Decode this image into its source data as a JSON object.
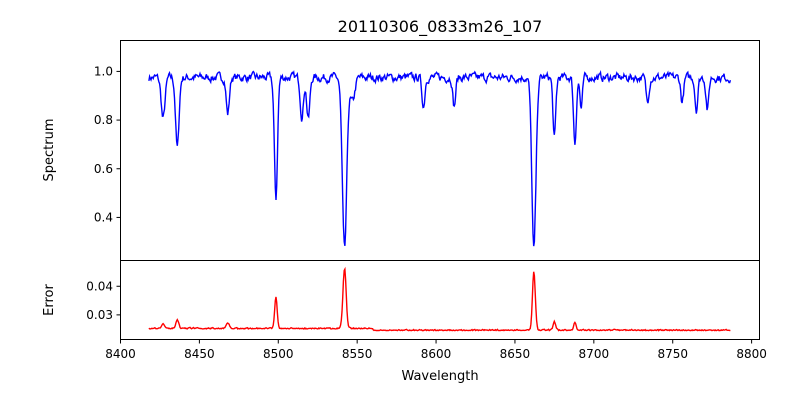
{
  "chart_data": {
    "type": "line",
    "title": "20110306_0833m26_107",
    "xlabel": "Wavelength",
    "xlim": [
      8400,
      8805
    ],
    "xticks": [
      "8400",
      "8450",
      "8500",
      "8550",
      "8600",
      "8650",
      "8700",
      "8750",
      "8800"
    ],
    "x_range_data": [
      8418,
      8787
    ],
    "panels": [
      {
        "name": "Spectrum",
        "ylabel": "Spectrum",
        "color": "#0000ff",
        "ylim": [
          0.223,
          1.127
        ],
        "yticks": [
          "0.4",
          "0.6",
          "0.8",
          "1.0"
        ],
        "continuum": 0.975,
        "noise": 0.028,
        "absorption_lines": [
          {
            "center": 8427,
            "depth": 0.17,
            "width": 1.2
          },
          {
            "center": 8436,
            "depth": 0.29,
            "width": 1.1
          },
          {
            "center": 8468,
            "depth": 0.15,
            "width": 1.0
          },
          {
            "center": 8498.5,
            "depth": 0.5,
            "width": 1.0
          },
          {
            "center": 8515,
            "depth": 0.16,
            "width": 1.0
          },
          {
            "center": 8519,
            "depth": 0.17,
            "width": 1.0
          },
          {
            "center": 8542,
            "depth": 0.71,
            "width": 1.4
          },
          {
            "center": 8547,
            "depth": 0.1,
            "width": 1.5
          },
          {
            "center": 8592,
            "depth": 0.12,
            "width": 0.9
          },
          {
            "center": 8611.5,
            "depth": 0.12,
            "width": 0.9
          },
          {
            "center": 8662,
            "depth": 0.71,
            "width": 1.3
          },
          {
            "center": 8675,
            "depth": 0.25,
            "width": 0.9
          },
          {
            "center": 8688,
            "depth": 0.27,
            "width": 0.9
          },
          {
            "center": 8692,
            "depth": 0.13,
            "width": 0.8
          },
          {
            "center": 8734,
            "depth": 0.1,
            "width": 0.9
          },
          {
            "center": 8756,
            "depth": 0.1,
            "width": 0.9
          },
          {
            "center": 8765,
            "depth": 0.13,
            "width": 0.9
          },
          {
            "center": 8772,
            "depth": 0.13,
            "width": 0.9
          }
        ]
      },
      {
        "name": "Error",
        "ylabel": "Error",
        "color": "#ff0000",
        "ylim": [
          0.0214,
          0.049
        ],
        "yticks": [
          "0.03",
          "0.04"
        ],
        "baseline": 0.0255,
        "noise": 0.0008,
        "emission_peaks": [
          {
            "center": 8427,
            "height": 0.0015,
            "width": 1.0
          },
          {
            "center": 8436,
            "height": 0.003,
            "width": 0.9
          },
          {
            "center": 8468,
            "height": 0.002,
            "width": 1.0
          },
          {
            "center": 8498.5,
            "height": 0.011,
            "width": 0.8
          },
          {
            "center": 8542,
            "height": 0.021,
            "width": 1.0
          },
          {
            "center": 8662,
            "height": 0.0205,
            "width": 0.9
          },
          {
            "center": 8675,
            "height": 0.003,
            "width": 0.8
          },
          {
            "center": 8688,
            "height": 0.0025,
            "width": 0.8
          }
        ]
      }
    ]
  }
}
